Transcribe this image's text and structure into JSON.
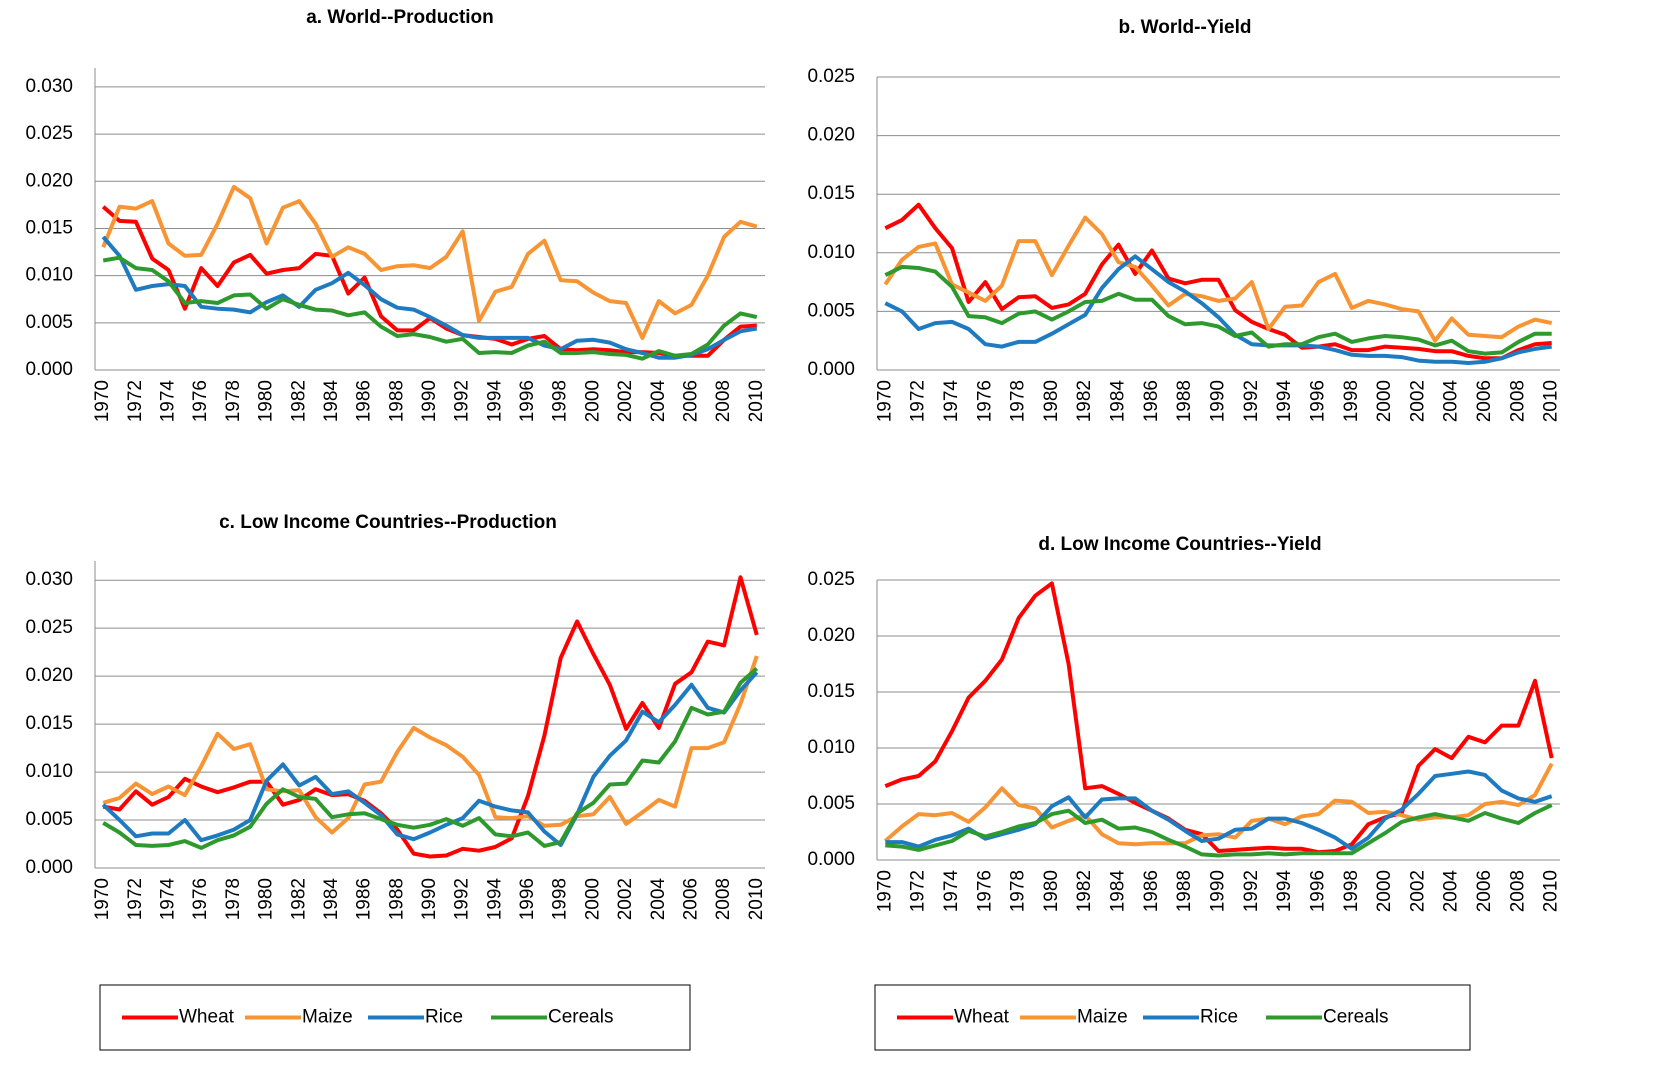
{
  "chart_data": [
    {
      "type": "line",
      "title": "a. World--Production",
      "categories": [
        "1970",
        null,
        "1972",
        null,
        "1974",
        null,
        "1976",
        null,
        "1978",
        null,
        "1980",
        null,
        "1982",
        null,
        "1984",
        null,
        "1986",
        null,
        "1988",
        null,
        "1990",
        null,
        "1992",
        null,
        "1994",
        null,
        "1996",
        null,
        "1998",
        null,
        "2000",
        null,
        "2002",
        null,
        "2004",
        null,
        "2006",
        null,
        "2008",
        null,
        "2010"
      ],
      "ylim": [
        0,
        0.032
      ],
      "yticks": [
        {
          "value": 0,
          "label": "0.000"
        },
        0.005,
        {
          "value": 0.01,
          "label": "0.010"
        },
        0.015,
        {
          "value": 0.02,
          "label": "0.020"
        },
        0.025,
        {
          "value": 0.03,
          "label": "0.030"
        }
      ],
      "grid": true,
      "series": [
        {
          "color": "#ff0000",
          "values": [
            0.0173,
            0.0158,
            0.0157,
            0.0118,
            0.0106,
            0.0065,
            0.0108,
            0.0089,
            0.0114,
            0.0122,
            0.0102,
            0.0106,
            0.0108,
            0.0123,
            0.0121,
            0.0081,
            0.0098,
            0.0057,
            0.0042,
            0.0042,
            0.0055,
            0.0044,
            0.0037,
            0.0035,
            0.0033,
            0.0027,
            0.0033,
            0.0036,
            0.0022,
            0.0021,
            0.0022,
            0.0021,
            0.0019,
            0.0019,
            0.0018,
            0.0015,
            0.0015,
            0.0015,
            0.0032,
            0.0046,
            0.0047
          ]
        },
        {
          "color": "#f79433",
          "values": [
            0.013,
            0.0173,
            0.0171,
            0.0179,
            0.0134,
            0.0121,
            0.0122,
            0.0155,
            0.0194,
            0.0182,
            0.0134,
            0.0172,
            0.0179,
            0.0155,
            0.012,
            0.013,
            0.0123,
            0.0106,
            0.011,
            0.0111,
            0.0108,
            0.012,
            0.0147,
            0.0052,
            0.0083,
            0.0088,
            0.0123,
            0.0137,
            0.0095,
            0.0094,
            0.0082,
            0.0073,
            0.0071,
            0.0034,
            0.0073,
            0.006,
            0.0069,
            0.01,
            0.0141,
            0.0157,
            0.0152
          ]
        },
        {
          "color": "#1f7bc1",
          "values": [
            0.0141,
            0.0121,
            0.0085,
            0.0089,
            0.0091,
            0.0089,
            0.0067,
            0.0065,
            0.0064,
            0.0061,
            0.0072,
            0.0079,
            0.0067,
            0.0085,
            0.0092,
            0.0103,
            0.009,
            0.0075,
            0.0066,
            0.0064,
            0.0056,
            0.0047,
            0.0037,
            0.0034,
            0.0034,
            0.0034,
            0.0034,
            0.0026,
            0.0022,
            0.0031,
            0.0032,
            0.0029,
            0.0022,
            0.0018,
            0.0013,
            0.0013,
            0.0016,
            0.0022,
            0.0032,
            0.0041,
            0.0044
          ]
        },
        {
          "color": "#2e9a2e",
          "values": [
            0.0116,
            0.0119,
            0.0108,
            0.0106,
            0.0094,
            0.0071,
            0.0073,
            0.0071,
            0.0079,
            0.008,
            0.0065,
            0.0075,
            0.0069,
            0.0064,
            0.0063,
            0.0058,
            0.0061,
            0.0046,
            0.0036,
            0.0038,
            0.0035,
            0.003,
            0.0033,
            0.0018,
            0.0019,
            0.0018,
            0.0026,
            0.003,
            0.0018,
            0.0018,
            0.0019,
            0.0017,
            0.0016,
            0.0012,
            0.002,
            0.0015,
            0.0017,
            0.0027,
            0.0047,
            0.006,
            0.0056
          ]
        }
      ]
    },
    {
      "type": "line",
      "title": "b. World--Yield",
      "categories": [
        "1970",
        null,
        "1972",
        null,
        "1974",
        null,
        "1976",
        null,
        "1978",
        null,
        "1980",
        null,
        "1982",
        null,
        "1984",
        null,
        "1986",
        null,
        "1988",
        null,
        "1990",
        null,
        "1992",
        null,
        "1994",
        null,
        "1996",
        null,
        "1998",
        null,
        "2000",
        null,
        "2002",
        null,
        "2004",
        null,
        "2006",
        null,
        "2008",
        null,
        "2010"
      ],
      "ylim": [
        0,
        0.025
      ],
      "yticks": [
        {
          "value": 0,
          "label": "0.000"
        },
        0.005,
        {
          "value": 0.01,
          "label": "0.010"
        },
        0.015,
        {
          "value": 0.02,
          "label": "0.020"
        },
        0.025
      ],
      "grid": true,
      "series": [
        {
          "color": "#ff0000",
          "values": [
            0.0121,
            0.0128,
            0.0141,
            0.0121,
            0.0104,
            0.0058,
            0.0075,
            0.0052,
            0.0062,
            0.0063,
            0.0053,
            0.0056,
            0.0065,
            0.009,
            0.0107,
            0.0082,
            0.0102,
            0.0078,
            0.0074,
            0.0077,
            0.0077,
            0.0051,
            0.0041,
            0.0035,
            0.003,
            0.0019,
            0.002,
            0.0022,
            0.0017,
            0.0017,
            0.002,
            0.0019,
            0.0018,
            0.0016,
            0.0016,
            0.0012,
            0.001,
            0.001,
            0.0017,
            0.0022,
            0.0023
          ]
        },
        {
          "color": "#f79433",
          "values": [
            0.0073,
            0.0094,
            0.0105,
            0.0108,
            0.0073,
            0.0066,
            0.0059,
            0.0072,
            0.011,
            0.011,
            0.0081,
            0.0106,
            0.013,
            0.0116,
            0.0092,
            0.0088,
            0.0072,
            0.0055,
            0.0065,
            0.0063,
            0.0059,
            0.0061,
            0.0075,
            0.0035,
            0.0054,
            0.0055,
            0.0075,
            0.0082,
            0.0053,
            0.0059,
            0.0056,
            0.0052,
            0.005,
            0.0025,
            0.0044,
            0.003,
            0.0029,
            0.0028,
            0.0037,
            0.0043,
            0.004
          ]
        },
        {
          "color": "#1f7bc1",
          "values": [
            0.0057,
            0.005,
            0.0035,
            0.004,
            0.0041,
            0.0035,
            0.0022,
            0.002,
            0.0024,
            0.0024,
            0.0031,
            0.0039,
            0.0047,
            0.007,
            0.0086,
            0.0097,
            0.0086,
            0.0075,
            0.0067,
            0.0057,
            0.0045,
            0.003,
            0.0022,
            0.0021,
            0.0021,
            0.0021,
            0.002,
            0.0017,
            0.0013,
            0.0012,
            0.0012,
            0.0011,
            0.0008,
            0.0007,
            0.0007,
            0.0006,
            0.0007,
            0.001,
            0.0015,
            0.0018,
            0.002
          ]
        },
        {
          "color": "#2e9a2e",
          "values": [
            0.0081,
            0.0088,
            0.0087,
            0.0084,
            0.0071,
            0.0046,
            0.0045,
            0.004,
            0.0048,
            0.005,
            0.0043,
            0.005,
            0.0058,
            0.0059,
            0.0065,
            0.006,
            0.006,
            0.0046,
            0.0039,
            0.004,
            0.0037,
            0.0029,
            0.0032,
            0.002,
            0.0022,
            0.0022,
            0.0028,
            0.0031,
            0.0024,
            0.0027,
            0.0029,
            0.0028,
            0.0026,
            0.0021,
            0.0025,
            0.0016,
            0.0014,
            0.0015,
            0.0024,
            0.0031,
            0.0031
          ]
        }
      ]
    },
    {
      "type": "line",
      "title": "c. Low Income Countries--Production",
      "categories": [
        "1970",
        null,
        "1972",
        null,
        "1974",
        null,
        "1976",
        null,
        "1978",
        null,
        "1980",
        null,
        "1982",
        null,
        "1984",
        null,
        "1986",
        null,
        "1988",
        null,
        "1990",
        null,
        "1992",
        null,
        "1994",
        null,
        "1996",
        null,
        "1998",
        null,
        "2000",
        null,
        "2002",
        null,
        "2004",
        null,
        "2006",
        null,
        "2008",
        null,
        "2010"
      ],
      "ylim": [
        0,
        0.032
      ],
      "yticks": [
        {
          "value": 0,
          "label": "0.000"
        },
        0.005,
        {
          "value": 0.01,
          "label": "0.010"
        },
        0.015,
        {
          "value": 0.02,
          "label": "0.020"
        },
        0.025,
        {
          "value": 0.03,
          "label": "0.030"
        }
      ],
      "grid": true,
      "legend": "bottom",
      "series": [
        {
          "name": "Wheat",
          "color": "#ff0000",
          "values": [
            0.0064,
            0.0061,
            0.008,
            0.0066,
            0.0074,
            0.0093,
            0.0085,
            0.0079,
            0.0084,
            0.009,
            0.009,
            0.0066,
            0.0071,
            0.0082,
            0.0076,
            0.0077,
            0.007,
            0.0057,
            0.004,
            0.0015,
            0.0012,
            0.0013,
            0.002,
            0.0018,
            0.0022,
            0.0031,
            0.0075,
            0.0138,
            0.0219,
            0.0257,
            0.0223,
            0.0191,
            0.0145,
            0.0172,
            0.0146,
            0.0192,
            0.0204,
            0.0236,
            0.0232,
            0.0303,
            0.0243
          ]
        },
        {
          "name": "Maize",
          "color": "#f79433",
          "values": [
            0.0068,
            0.0073,
            0.0088,
            0.0077,
            0.0085,
            0.0076,
            0.0106,
            0.014,
            0.0124,
            0.0129,
            0.0082,
            0.008,
            0.0081,
            0.0053,
            0.0037,
            0.0052,
            0.0087,
            0.009,
            0.0121,
            0.0146,
            0.0136,
            0.0128,
            0.0116,
            0.0097,
            0.0053,
            0.0052,
            0.0054,
            0.0044,
            0.0045,
            0.0054,
            0.0056,
            0.0074,
            0.0046,
            0.0058,
            0.0071,
            0.0064,
            0.0125,
            0.0125,
            0.0131,
            0.0171,
            0.0221
          ]
        },
        {
          "name": "Rice",
          "color": "#1f7bc1",
          "values": [
            0.0066,
            0.005,
            0.0033,
            0.0036,
            0.0036,
            0.005,
            0.0029,
            0.0034,
            0.004,
            0.005,
            0.0091,
            0.0108,
            0.0086,
            0.0095,
            0.0077,
            0.008,
            0.0068,
            0.0055,
            0.0035,
            0.003,
            0.0037,
            0.0045,
            0.0052,
            0.007,
            0.0064,
            0.006,
            0.0058,
            0.0038,
            0.0024,
            0.0056,
            0.0095,
            0.0117,
            0.0133,
            0.0163,
            0.0152,
            0.017,
            0.0191,
            0.0167,
            0.0162,
            0.0185,
            0.0204
          ]
        },
        {
          "name": "Cereals",
          "color": "#2e9a2e",
          "values": [
            0.0047,
            0.0037,
            0.0024,
            0.0023,
            0.0024,
            0.0028,
            0.0021,
            0.0029,
            0.0034,
            0.0043,
            0.0067,
            0.0082,
            0.0074,
            0.0072,
            0.0053,
            0.0056,
            0.0057,
            0.0051,
            0.0045,
            0.0042,
            0.0045,
            0.0051,
            0.0044,
            0.0052,
            0.0035,
            0.0033,
            0.0037,
            0.0023,
            0.0027,
            0.0057,
            0.0068,
            0.0087,
            0.0088,
            0.0112,
            0.011,
            0.0132,
            0.0167,
            0.016,
            0.0163,
            0.0193,
            0.0208
          ]
        }
      ]
    },
    {
      "type": "line",
      "title": "d. Low Income Countries--Yield",
      "categories": [
        "1970",
        null,
        "1972",
        null,
        "1974",
        null,
        "1976",
        null,
        "1978",
        null,
        "1980",
        null,
        "1982",
        null,
        "1984",
        null,
        "1986",
        null,
        "1988",
        null,
        "1990",
        null,
        "1992",
        null,
        "1994",
        null,
        "1996",
        null,
        "1998",
        null,
        "2000",
        null,
        "2002",
        null,
        "2004",
        null,
        "2006",
        null,
        "2008",
        null,
        "2010"
      ],
      "ylim": [
        0,
        0.025
      ],
      "yticks": [
        {
          "value": 0,
          "label": "0.000"
        },
        0.005,
        {
          "value": 0.01,
          "label": "0.010"
        },
        0.015,
        {
          "value": 0.02,
          "label": "0.020"
        },
        0.025
      ],
      "grid": true,
      "legend": "bottom",
      "series": [
        {
          "name": "Wheat",
          "color": "#ff0000",
          "values": [
            0.0066,
            0.0072,
            0.0075,
            0.0088,
            0.0115,
            0.0145,
            0.016,
            0.0179,
            0.0216,
            0.0236,
            0.0247,
            0.0175,
            0.0064,
            0.0066,
            0.0059,
            0.0051,
            0.0044,
            0.0037,
            0.0027,
            0.0023,
            0.0008,
            0.0009,
            0.001,
            0.0011,
            0.001,
            0.001,
            0.0007,
            0.0008,
            0.0014,
            0.0032,
            0.0038,
            0.0042,
            0.0084,
            0.0099,
            0.0091,
            0.011,
            0.0105,
            0.012,
            0.012,
            0.016,
            0.0091
          ]
        },
        {
          "name": "Maize",
          "color": "#f79433",
          "values": [
            0.0017,
            0.003,
            0.0041,
            0.004,
            0.0042,
            0.0034,
            0.0047,
            0.0064,
            0.0049,
            0.0046,
            0.0029,
            0.0035,
            0.004,
            0.0023,
            0.0015,
            0.0014,
            0.0015,
            0.0015,
            0.0015,
            0.0022,
            0.0023,
            0.002,
            0.0035,
            0.0037,
            0.0032,
            0.0039,
            0.0041,
            0.0053,
            0.0052,
            0.0042,
            0.0043,
            0.004,
            0.0036,
            0.0038,
            0.0038,
            0.004,
            0.005,
            0.0052,
            0.0049,
            0.0058,
            0.0086
          ]
        },
        {
          "name": "Rice",
          "color": "#1f7bc1",
          "values": [
            0.0016,
            0.0016,
            0.0012,
            0.0018,
            0.0022,
            0.0028,
            0.0019,
            0.0023,
            0.0027,
            0.0032,
            0.0048,
            0.0056,
            0.0038,
            0.0054,
            0.0055,
            0.0055,
            0.0044,
            0.0036,
            0.0026,
            0.0017,
            0.0019,
            0.0027,
            0.0028,
            0.0037,
            0.0037,
            0.0033,
            0.0027,
            0.002,
            0.001,
            0.002,
            0.0037,
            0.0045,
            0.0059,
            0.0075,
            0.0077,
            0.0079,
            0.0076,
            0.0062,
            0.0055,
            0.0052,
            0.0057
          ]
        },
        {
          "name": "Cereals",
          "color": "#2e9a2e",
          "values": [
            0.0013,
            0.0012,
            0.0009,
            0.0013,
            0.0017,
            0.0026,
            0.0021,
            0.0025,
            0.003,
            0.0033,
            0.0041,
            0.0044,
            0.0033,
            0.0036,
            0.0028,
            0.0029,
            0.0025,
            0.0018,
            0.0012,
            0.0005,
            0.0004,
            0.0005,
            0.0005,
            0.0006,
            0.0005,
            0.0006,
            0.0006,
            0.0006,
            0.0006,
            0.0015,
            0.0024,
            0.0034,
            0.0038,
            0.0041,
            0.0038,
            0.0035,
            0.0042,
            0.0037,
            0.0033,
            0.0042,
            0.0049
          ]
        }
      ]
    }
  ]
}
